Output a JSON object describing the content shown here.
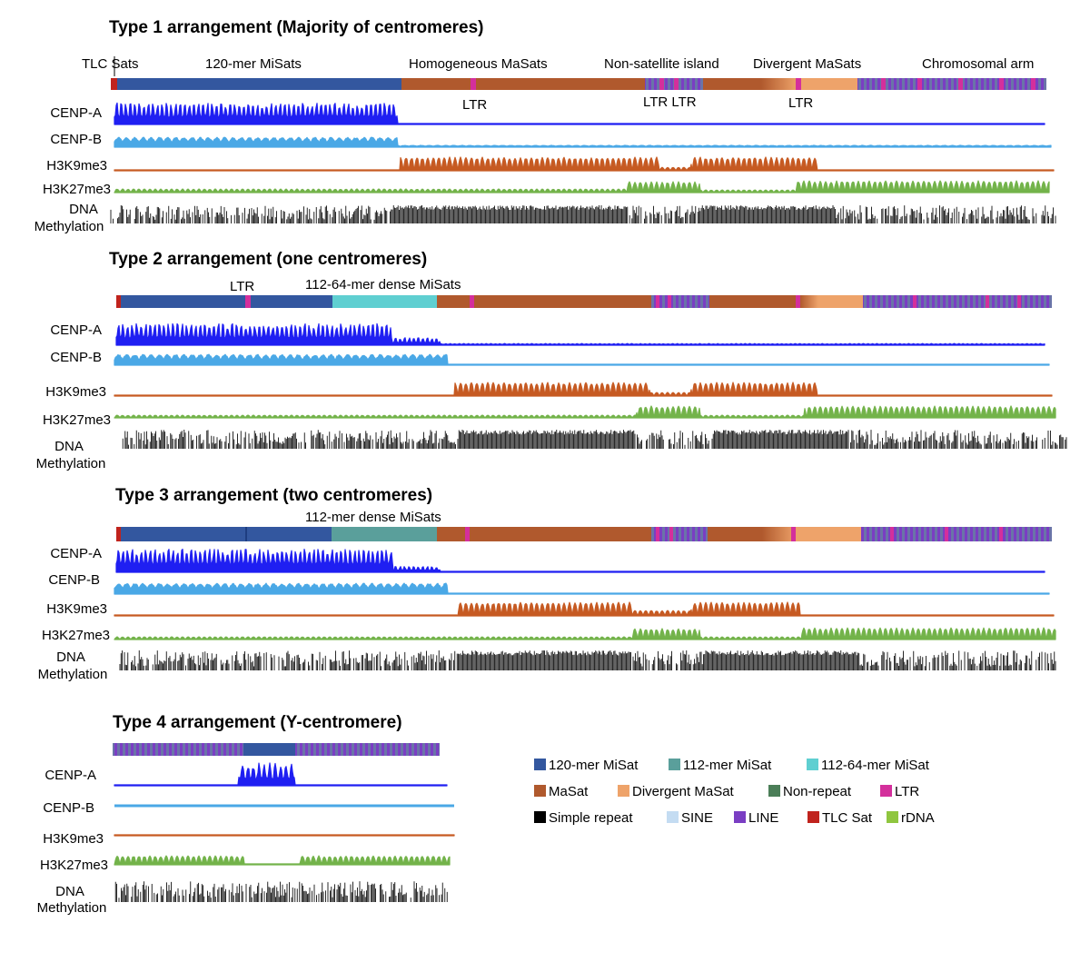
{
  "colors": {
    "mi120": "#33579f",
    "mi112": "#5a9f9b",
    "mi11264": "#5fcfd1",
    "masat": "#b0592d",
    "divergent": "#eea36a",
    "nonrepeat": "#4b7e58",
    "ltr": "#d42f9c",
    "simple": "#000000",
    "sine": "#c4dcf2",
    "line": "#7a3ec3",
    "tlc": "#c0231d",
    "rdna": "#8fc63f",
    "cenpa": "#1f1ff2",
    "cenpb": "#4aa8e6",
    "h3k9": "#c65a22",
    "h3k27": "#73b34a",
    "dna": "#111111"
  },
  "legend": [
    {
      "label": "120-mer MiSat",
      "color": "#33579f"
    },
    {
      "label": "112-mer MiSat",
      "color": "#5a9f9b"
    },
    {
      "label": "112-64-mer MiSat",
      "color": "#5fcfd1"
    },
    {
      "label": "MaSat",
      "color": "#b0592d"
    },
    {
      "label": "Divergent MaSat",
      "color": "#eea36a"
    },
    {
      "label": "Non-repeat",
      "color": "#4b7e58"
    },
    {
      "label": "LTR",
      "color": "#d42f9c"
    },
    {
      "label": "Simple repeat",
      "color": "#000000"
    },
    {
      "label": "SINE",
      "color": "#c4dcf2"
    },
    {
      "label": "LINE",
      "color": "#7a3ec3"
    },
    {
      "label": "TLC Sat",
      "color": "#c0231d"
    },
    {
      "label": "rDNA",
      "color": "#8fc63f"
    }
  ],
  "panels": [
    {
      "title": "Type 1 arrangement (Majority of centromeres)",
      "region_labels": [
        "TLC Sats",
        "120-mer MiSats",
        "Homogeneous MaSats",
        "Non-satellite island",
        "Divergent MaSats",
        "Chromosomal arm"
      ],
      "ltr_labels": [
        "LTR",
        "LTR LTR",
        "LTR"
      ],
      "tracks": [
        "CENP-A",
        "CENP-B",
        "H3K9me3",
        "H3K27me3",
        "DNA",
        "Methylation"
      ]
    },
    {
      "title": "Type 2 arrangement (one centromeres)",
      "region_labels": [
        "112-64-mer dense MiSats"
      ],
      "ltr_labels": [
        "LTR"
      ],
      "tracks": [
        "CENP-A",
        "CENP-B",
        "H3K9me3",
        "H3K27me3",
        "DNA",
        "Methylation"
      ]
    },
    {
      "title": "Type 3 arrangement (two centromeres)",
      "region_labels": [
        "112-mer dense MiSats"
      ],
      "ltr_labels": [],
      "tracks": [
        "CENP-A",
        "CENP-B",
        "H3K9me3",
        "H3K27me3",
        "DNA",
        "Methylation"
      ]
    },
    {
      "title": "Type 4 arrangement (Y-centromere)",
      "region_labels": [],
      "ltr_labels": [],
      "tracks": [
        "CENP-A",
        "CENP-B",
        "H3K9me3",
        "H3K27me3",
        "DNA",
        "Methylation"
      ]
    }
  ]
}
